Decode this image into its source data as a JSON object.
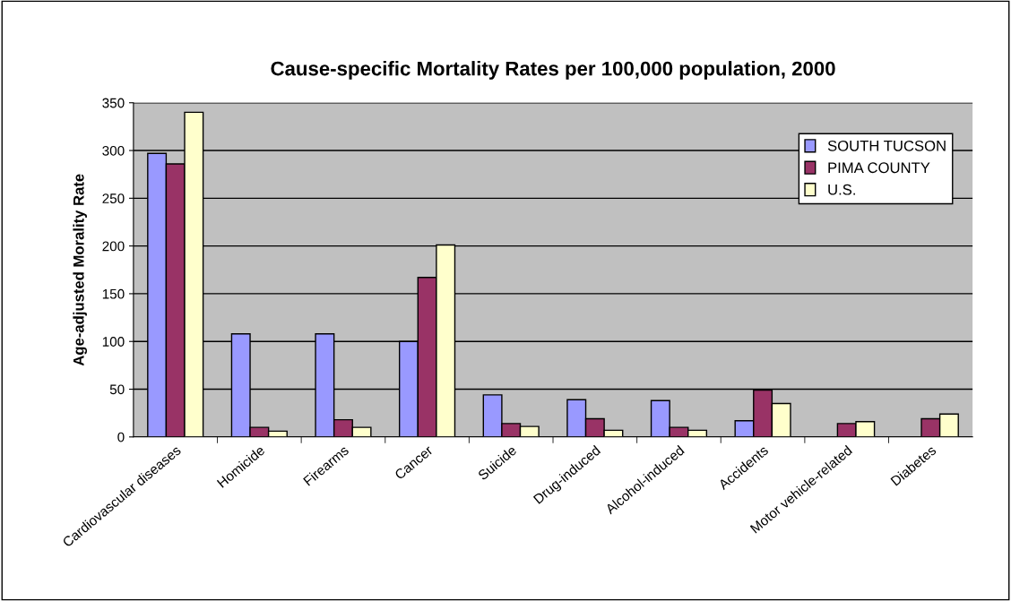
{
  "chart_data": {
    "type": "bar",
    "title": "Cause-specific Mortality Rates per 100,000 population, 2000",
    "ylabel": "Age-adjusted Morality Rate",
    "categories": [
      "Cardiovascular diseases",
      "Homicide",
      "Firearms",
      "Cancer",
      "Suicide",
      "Drug-induced",
      "Alcohol-induced",
      "Accidents",
      "Motor vehicle-related",
      "Diabetes"
    ],
    "series": [
      {
        "name": "SOUTH TUCSON",
        "color": "#9999ff",
        "values": [
          297,
          108,
          108,
          100,
          44,
          39,
          38,
          17,
          null,
          null
        ]
      },
      {
        "name": "PIMA COUNTY",
        "color": "#993366",
        "values": [
          286,
          10,
          18,
          167,
          14,
          19,
          10,
          49,
          14,
          19
        ]
      },
      {
        "name": "U.S.",
        "color": "#ffffcc",
        "values": [
          340,
          6,
          10,
          201,
          11,
          7,
          7,
          35,
          16,
          24
        ]
      }
    ],
    "ylim": [
      0,
      350
    ],
    "yticks": [
      0,
      50,
      100,
      150,
      200,
      250,
      300,
      350
    ],
    "grid": "y",
    "legend": "top right"
  }
}
